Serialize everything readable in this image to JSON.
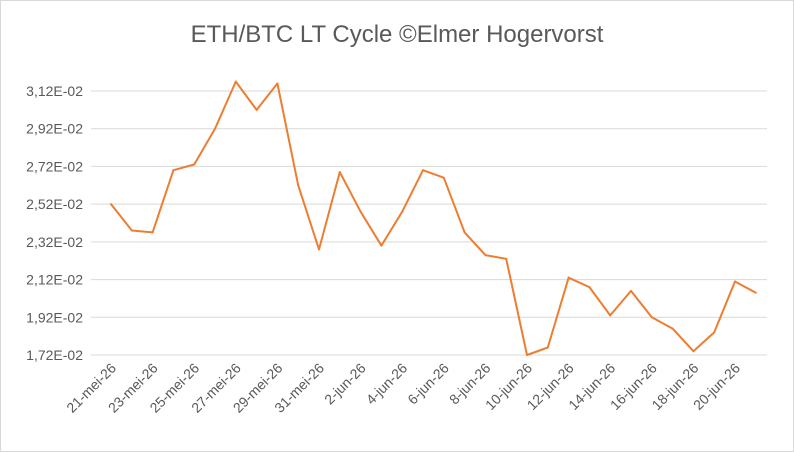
{
  "chart_data": {
    "type": "line",
    "title": "ETH/BTC LT Cycle ©Elmer Hogervorst",
    "xlabel": "",
    "ylabel": "",
    "ylim": [
      0.0172,
      0.0312
    ],
    "yticks": [
      "1,72E-02",
      "1,92E-02",
      "2,12E-02",
      "2,32E-02",
      "2,52E-02",
      "2,72E-02",
      "2,92E-02",
      "3,12E-02"
    ],
    "xticks": [
      "21-mei-26",
      "23-mei-26",
      "25-mei-26",
      "27-mei-26",
      "29-mei-26",
      "31-mei-26",
      "2-jun-26",
      "4-jun-26",
      "6-jun-26",
      "8-jun-26",
      "10-jun-26",
      "12-jun-26",
      "14-jun-26",
      "16-jun-26",
      "18-jun-26",
      "20-jun-26"
    ],
    "grid": true,
    "legend": "none",
    "line_color": "#ed7d31",
    "x": [
      "21-mei-26",
      "22-mei-26",
      "23-mei-26",
      "24-mei-26",
      "25-mei-26",
      "26-mei-26",
      "27-mei-26",
      "28-mei-26",
      "29-mei-26",
      "30-mei-26",
      "31-mei-26",
      "1-jun-26",
      "2-jun-26",
      "3-jun-26",
      "4-jun-26",
      "5-jun-26",
      "6-jun-26",
      "7-jun-26",
      "8-jun-26",
      "9-jun-26",
      "10-jun-26",
      "11-jun-26",
      "12-jun-26",
      "13-jun-26",
      "14-jun-26",
      "15-jun-26",
      "16-jun-26",
      "17-jun-26",
      "18-jun-26",
      "19-jun-26",
      "20-jun-26",
      "21-jun-26"
    ],
    "values": [
      0.0252,
      0.0238,
      0.0237,
      0.027,
      0.0273,
      0.0292,
      0.0317,
      0.0302,
      0.0316,
      0.0262,
      0.0228,
      0.0269,
      0.0248,
      0.023,
      0.0248,
      0.027,
      0.0266,
      0.0237,
      0.0225,
      0.0223,
      0.0172,
      0.0176,
      0.0213,
      0.0208,
      0.0193,
      0.0206,
      0.0192,
      0.0186,
      0.0174,
      0.0184,
      0.0211,
      0.0205
    ]
  }
}
